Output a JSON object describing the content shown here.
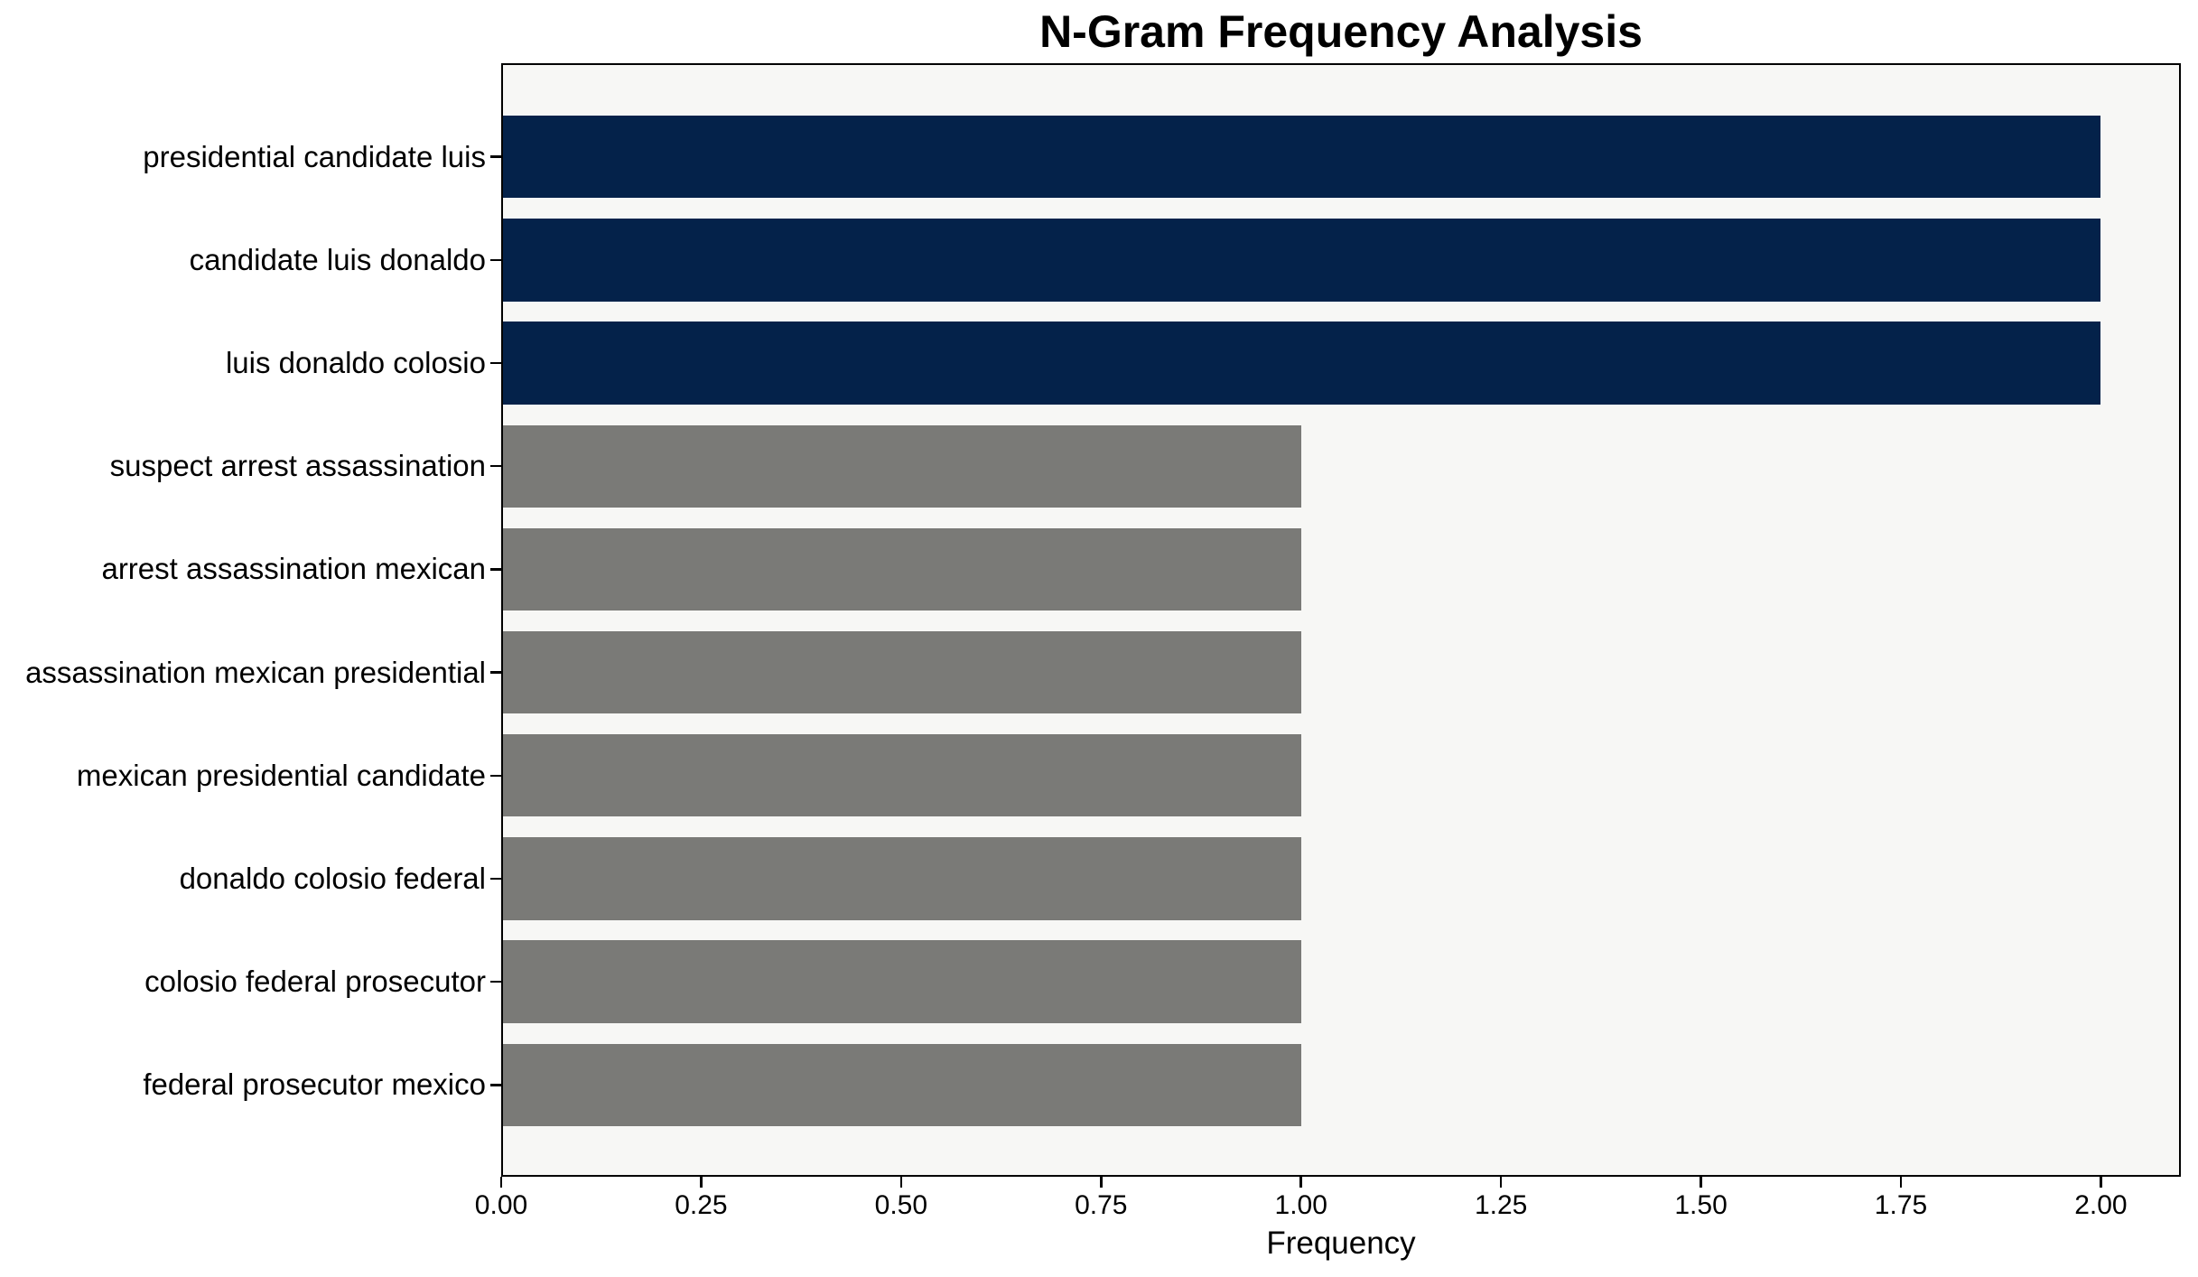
{
  "chart_data": {
    "type": "bar",
    "orientation": "horizontal",
    "title": "N-Gram Frequency Analysis",
    "xlabel": "Frequency",
    "ylabel": "",
    "categories": [
      "presidential candidate luis",
      "candidate luis donaldo",
      "luis donaldo colosio",
      "suspect arrest assassination",
      "arrest assassination mexican",
      "assassination mexican presidential",
      "mexican presidential candidate",
      "donaldo colosio federal",
      "colosio federal prosecutor",
      "federal prosecutor mexico"
    ],
    "values": [
      2,
      2,
      2,
      1,
      1,
      1,
      1,
      1,
      1,
      1
    ],
    "bar_colors": [
      "#04224a",
      "#04224a",
      "#04224a",
      "#7a7a77",
      "#7a7a77",
      "#7a7a77",
      "#7a7a77",
      "#7a7a77",
      "#7a7a77",
      "#7a7a77"
    ],
    "highlight_color": "#04224a",
    "base_color": "#7a7a77",
    "xlim": [
      0,
      2.1
    ],
    "xticks": [
      "0.00",
      "0.25",
      "0.50",
      "0.75",
      "1.00",
      "1.25",
      "1.50",
      "1.75",
      "2.00"
    ],
    "xtick_values": [
      0,
      0.25,
      0.5,
      0.75,
      1.0,
      1.25,
      1.5,
      1.75,
      2.0
    ],
    "grid": false,
    "legend": null,
    "plot_background": "#f7f7f5",
    "axis_color": "#000000",
    "text_color": "#000000"
  }
}
